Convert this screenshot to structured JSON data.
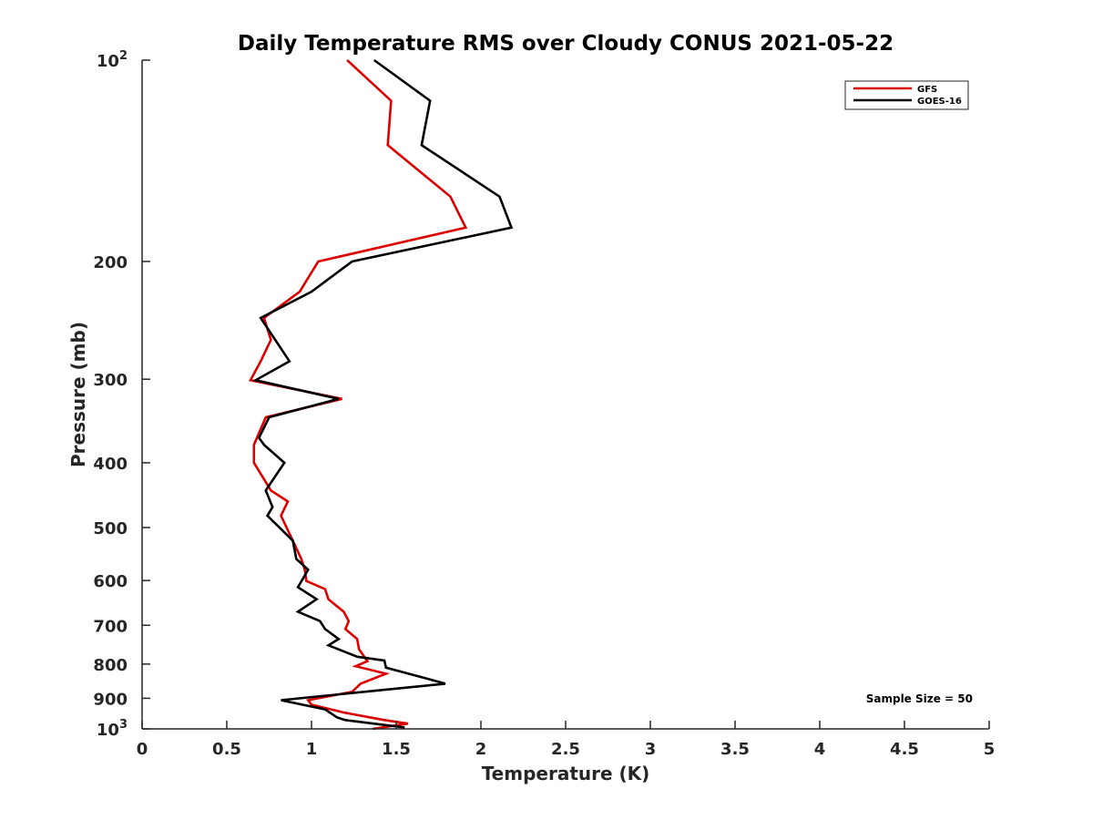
{
  "chart_data": {
    "type": "line",
    "title": "Daily Temperature RMS over Cloudy CONUS 2021-05-22",
    "xlabel": "Temperature (K)",
    "ylabel": "Pressure (mb)",
    "xlim": [
      0,
      5
    ],
    "ylim": [
      1000,
      100
    ],
    "yscale": "log",
    "y_reversed": true,
    "grid": false,
    "legend_position": "top-right",
    "x_ticks": [
      "0",
      "0.5",
      "1",
      "1.5",
      "2",
      "2.5",
      "3",
      "3.5",
      "4",
      "4.5",
      "5"
    ],
    "x_tick_values": [
      0,
      0.5,
      1,
      1.5,
      2,
      2.5,
      3,
      3.5,
      4,
      4.5,
      5
    ],
    "y_ticks": [
      {
        "value": 100,
        "base": "10",
        "exp": "2"
      },
      {
        "value": 200,
        "label": "200"
      },
      {
        "value": 300,
        "label": "300"
      },
      {
        "value": 400,
        "label": "400"
      },
      {
        "value": 500,
        "label": "500"
      },
      {
        "value": 600,
        "label": "600"
      },
      {
        "value": 700,
        "label": "700"
      },
      {
        "value": 800,
        "label": "800"
      },
      {
        "value": 900,
        "label": "900"
      },
      {
        "value": 1000,
        "base": "10",
        "exp": "3"
      }
    ],
    "series": [
      {
        "name": "GFS",
        "color": "#dd0000",
        "points": [
          [
            1.21,
            100
          ],
          [
            1.47,
            115
          ],
          [
            1.45,
            134
          ],
          [
            1.82,
            160
          ],
          [
            1.91,
            178
          ],
          [
            1.04,
            200
          ],
          [
            0.93,
            222
          ],
          [
            0.72,
            243
          ],
          [
            0.76,
            262
          ],
          [
            0.7,
            282
          ],
          [
            0.64,
            301
          ],
          [
            1.18,
            321
          ],
          [
            0.73,
            342
          ],
          [
            0.66,
            376
          ],
          [
            0.66,
            400
          ],
          [
            0.76,
            440
          ],
          [
            0.86,
            457
          ],
          [
            0.82,
            480
          ],
          [
            0.89,
            523
          ],
          [
            0.94,
            557
          ],
          [
            0.96,
            578
          ],
          [
            0.97,
            601
          ],
          [
            1.08,
            618
          ],
          [
            1.1,
            640
          ],
          [
            1.19,
            668
          ],
          [
            1.22,
            690
          ],
          [
            1.2,
            709
          ],
          [
            1.27,
            734
          ],
          [
            1.28,
            760
          ],
          [
            1.33,
            792
          ],
          [
            1.26,
            806
          ],
          [
            1.44,
            827
          ],
          [
            1.29,
            856
          ],
          [
            1.24,
            880
          ],
          [
            0.98,
            906
          ],
          [
            1.0,
            920
          ],
          [
            1.19,
            945
          ],
          [
            1.43,
            970
          ],
          [
            1.57,
            982
          ],
          [
            1.36,
            1000
          ]
        ]
      },
      {
        "name": "GOES-16",
        "color": "#000000",
        "points": [
          [
            1.37,
            100
          ],
          [
            1.7,
            115
          ],
          [
            1.65,
            134
          ],
          [
            2.11,
            160
          ],
          [
            2.18,
            178
          ],
          [
            1.24,
            200
          ],
          [
            1.0,
            222
          ],
          [
            0.7,
            243
          ],
          [
            0.87,
            282
          ],
          [
            0.67,
            301
          ],
          [
            1.16,
            321
          ],
          [
            0.75,
            342
          ],
          [
            0.69,
            367
          ],
          [
            0.72,
            376
          ],
          [
            0.84,
            400
          ],
          [
            0.73,
            440
          ],
          [
            0.77,
            466
          ],
          [
            0.74,
            480
          ],
          [
            0.89,
            523
          ],
          [
            0.91,
            557
          ],
          [
            0.98,
            578
          ],
          [
            0.92,
            614
          ],
          [
            1.03,
            640
          ],
          [
            0.92,
            668
          ],
          [
            1.05,
            690
          ],
          [
            1.08,
            709
          ],
          [
            1.16,
            734
          ],
          [
            1.1,
            750
          ],
          [
            1.27,
            780
          ],
          [
            1.43,
            790
          ],
          [
            1.44,
            810
          ],
          [
            1.66,
            838
          ],
          [
            1.79,
            856
          ],
          [
            0.82,
            906
          ],
          [
            1.08,
            935
          ],
          [
            1.15,
            961
          ],
          [
            1.2,
            970
          ],
          [
            1.55,
            995
          ]
        ]
      }
    ],
    "annotation": "Sample Size = 50"
  }
}
